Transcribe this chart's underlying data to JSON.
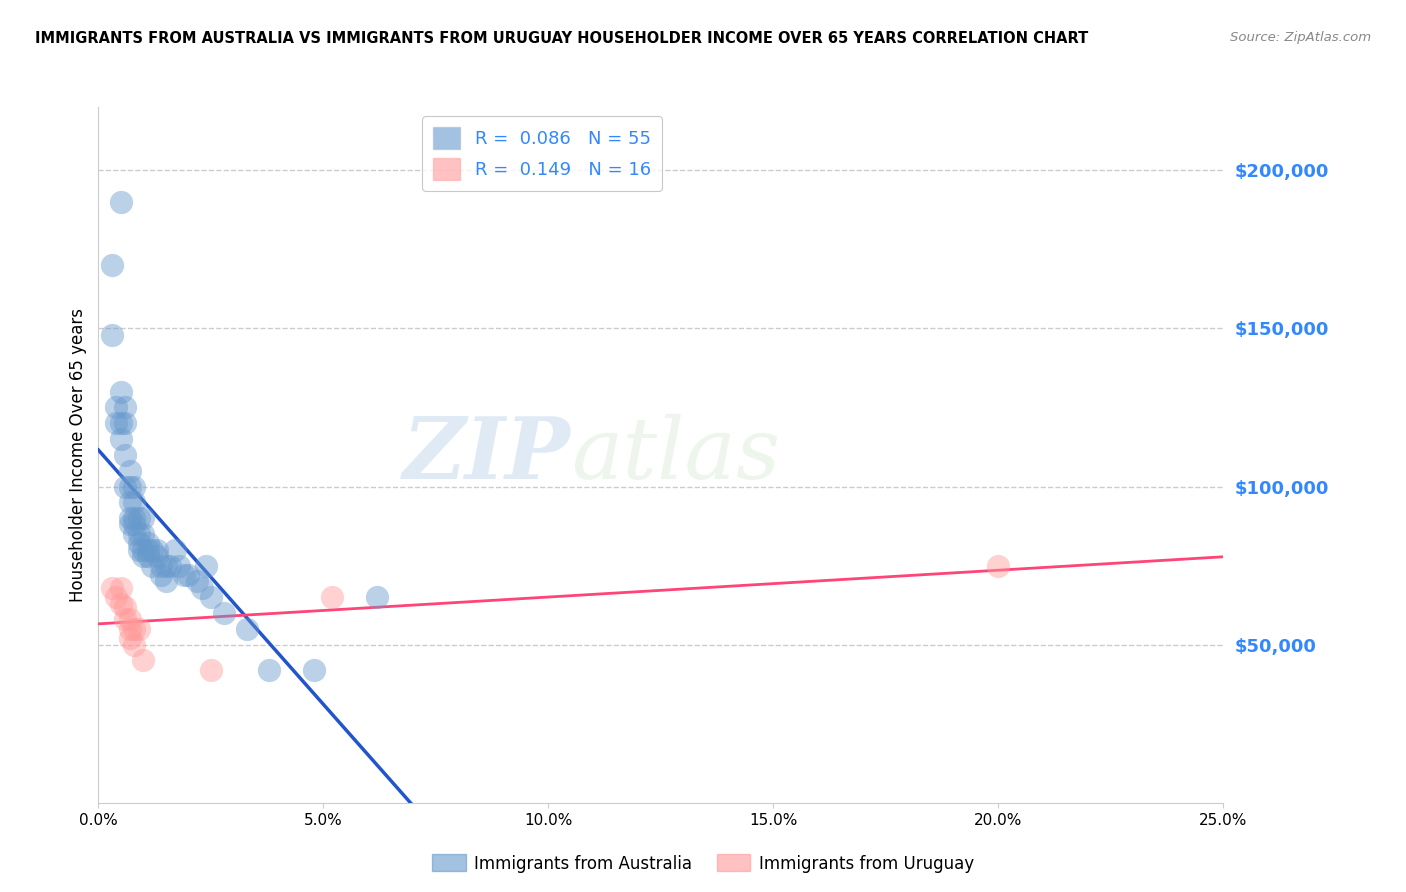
{
  "title": "IMMIGRANTS FROM AUSTRALIA VS IMMIGRANTS FROM URUGUAY HOUSEHOLDER INCOME OVER 65 YEARS CORRELATION CHART",
  "source": "Source: ZipAtlas.com",
  "ylabel": "Householder Income Over 65 years",
  "legend_australia": "Immigrants from Australia",
  "legend_uruguay": "Immigrants from Uruguay",
  "R_australia": 0.086,
  "N_australia": 55,
  "R_uruguay": 0.149,
  "N_uruguay": 16,
  "color_australia": "#6699CC",
  "color_uruguay": "#FF9999",
  "line_color_australia": "#2255CC",
  "line_color_uruguay": "#FF4477",
  "watermark_zip": "ZIP",
  "watermark_atlas": "atlas",
  "xlim": [
    0.0,
    0.25
  ],
  "ylim": [
    0,
    220000
  ],
  "xticks": [
    0.0,
    0.05,
    0.1,
    0.15,
    0.2,
    0.25
  ],
  "xticklabels": [
    "0.0%",
    "5.0%",
    "10.0%",
    "15.0%",
    "20.0%",
    "25.0%"
  ],
  "right_yticks": [
    50000,
    100000,
    150000,
    200000
  ],
  "right_yticklabels": [
    "$50,000",
    "$100,000",
    "$150,000",
    "$200,000"
  ],
  "australia_x": [
    0.005,
    0.003,
    0.003,
    0.004,
    0.004,
    0.005,
    0.005,
    0.005,
    0.006,
    0.006,
    0.006,
    0.006,
    0.007,
    0.007,
    0.007,
    0.007,
    0.007,
    0.008,
    0.008,
    0.008,
    0.008,
    0.008,
    0.009,
    0.009,
    0.009,
    0.009,
    0.01,
    0.01,
    0.01,
    0.01,
    0.011,
    0.011,
    0.011,
    0.012,
    0.012,
    0.013,
    0.013,
    0.014,
    0.014,
    0.015,
    0.015,
    0.016,
    0.017,
    0.018,
    0.019,
    0.02,
    0.022,
    0.023,
    0.024,
    0.025,
    0.028,
    0.033,
    0.038,
    0.048,
    0.062
  ],
  "australia_y": [
    190000,
    170000,
    148000,
    125000,
    120000,
    130000,
    120000,
    115000,
    125000,
    120000,
    110000,
    100000,
    105000,
    100000,
    95000,
    90000,
    88000,
    100000,
    95000,
    90000,
    88000,
    85000,
    90000,
    85000,
    82000,
    80000,
    90000,
    85000,
    80000,
    78000,
    82000,
    80000,
    78000,
    80000,
    75000,
    80000,
    78000,
    75000,
    72000,
    75000,
    70000,
    75000,
    80000,
    75000,
    72000,
    72000,
    70000,
    68000,
    75000,
    65000,
    60000,
    55000,
    42000,
    42000,
    65000
  ],
  "uruguay_x": [
    0.003,
    0.004,
    0.005,
    0.005,
    0.006,
    0.006,
    0.007,
    0.007,
    0.007,
    0.008,
    0.008,
    0.009,
    0.01,
    0.025,
    0.052,
    0.2
  ],
  "uruguay_y": [
    68000,
    65000,
    68000,
    63000,
    62000,
    58000,
    58000,
    55000,
    52000,
    55000,
    50000,
    55000,
    45000,
    42000,
    65000,
    75000
  ]
}
